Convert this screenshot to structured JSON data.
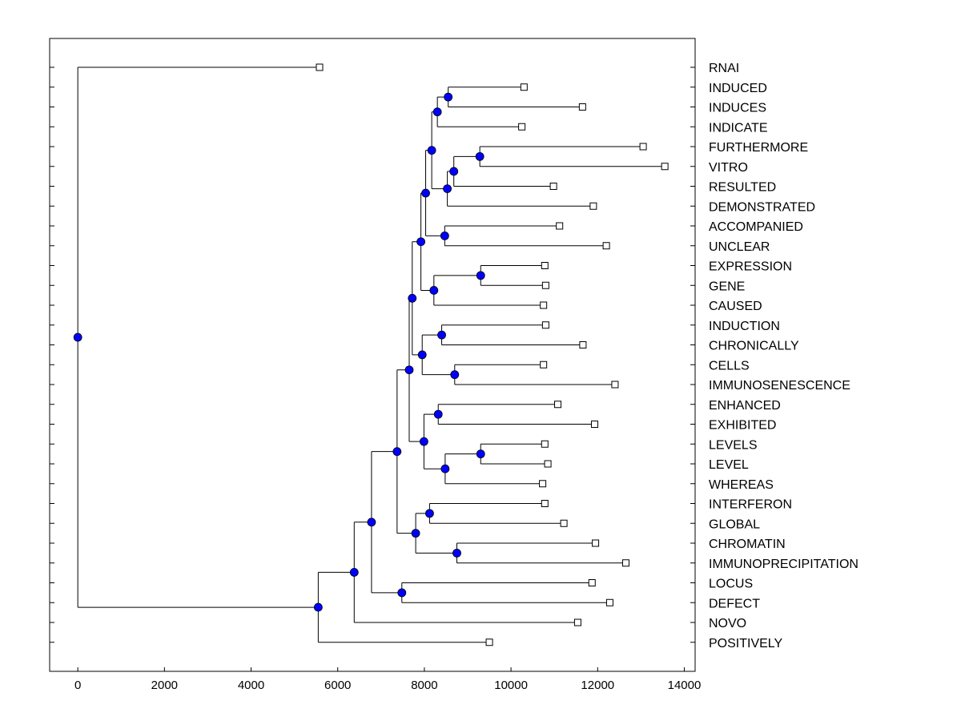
{
  "chart_data": {
    "type": "dendrogram",
    "title": "",
    "xlabel": "",
    "ylabel": "",
    "xlim": [
      -650,
      14250
    ],
    "x_ticks": [
      0,
      2000,
      4000,
      6000,
      8000,
      10000,
      12000,
      14000
    ],
    "x_tick_labels": [
      "0",
      "2000",
      "4000",
      "6000",
      "8000",
      "10000",
      "12000",
      "14000"
    ],
    "grid": false,
    "colors": {
      "node_fill": "#0000ff",
      "line": "#000000",
      "leaf_fill": "#ffffff"
    },
    "leaves": [
      {
        "name": "RNAI",
        "x": 5580
      },
      {
        "name": "INDUCED",
        "x": 10300
      },
      {
        "name": "INDUCES",
        "x": 11650
      },
      {
        "name": "INDICATE",
        "x": 10250
      },
      {
        "name": "FURTHERMORE",
        "x": 13050
      },
      {
        "name": "VITRO",
        "x": 13550
      },
      {
        "name": "RESULTED",
        "x": 10980
      },
      {
        "name": "DEMONSTRATED",
        "x": 11900
      },
      {
        "name": "ACCOMPANIED",
        "x": 11120
      },
      {
        "name": "UNCLEAR",
        "x": 12200
      },
      {
        "name": "EXPRESSION",
        "x": 10780
      },
      {
        "name": "GENE",
        "x": 10800
      },
      {
        "name": "CAUSED",
        "x": 10750
      },
      {
        "name": "INDUCTION",
        "x": 10800
      },
      {
        "name": "CHRONICALLY",
        "x": 11660
      },
      {
        "name": "CELLS",
        "x": 10750
      },
      {
        "name": "IMMUNOSENESCENCE",
        "x": 12400
      },
      {
        "name": "ENHANCED",
        "x": 11080
      },
      {
        "name": "EXHIBITED",
        "x": 11930
      },
      {
        "name": "LEVELS",
        "x": 10780
      },
      {
        "name": "LEVEL",
        "x": 10850
      },
      {
        "name": "WHEREAS",
        "x": 10730
      },
      {
        "name": "INTERFERON",
        "x": 10780
      },
      {
        "name": "GLOBAL",
        "x": 11220
      },
      {
        "name": "CHROMATIN",
        "x": 11950
      },
      {
        "name": "IMMUNOPRECIPITATION",
        "x": 12650
      },
      {
        "name": "LOCUS",
        "x": 11870
      },
      {
        "name": "DEFECT",
        "x": 12280
      },
      {
        "name": "NOVO",
        "x": 11540
      },
      {
        "name": "POSITIVELY",
        "x": 9500
      }
    ],
    "merges": [
      {
        "id": "m1",
        "height": 8550,
        "children": [
          1,
          2
        ]
      },
      {
        "id": "m2",
        "height": 8300,
        "children": [
          "m1",
          3
        ]
      },
      {
        "id": "m3",
        "height": 9280,
        "children": [
          4,
          5
        ]
      },
      {
        "id": "m4",
        "height": 8680,
        "children": [
          "m3",
          6
        ]
      },
      {
        "id": "m5",
        "height": 8530,
        "children": [
          "m4",
          7
        ]
      },
      {
        "id": "m6",
        "height": 8170,
        "children": [
          "m2",
          "m5"
        ]
      },
      {
        "id": "m7",
        "height": 8470,
        "children": [
          8,
          9
        ]
      },
      {
        "id": "m8",
        "height": 8030,
        "children": [
          "m6",
          "m7"
        ]
      },
      {
        "id": "m9",
        "height": 9300,
        "children": [
          10,
          11
        ]
      },
      {
        "id": "m10",
        "height": 8220,
        "children": [
          "m9",
          12
        ]
      },
      {
        "id": "m11",
        "height": 7920,
        "children": [
          "m8",
          "m10"
        ]
      },
      {
        "id": "m12",
        "height": 8400,
        "children": [
          13,
          14
        ]
      },
      {
        "id": "m13",
        "height": 8700,
        "children": [
          15,
          16
        ]
      },
      {
        "id": "m14",
        "height": 7950,
        "children": [
          "m12",
          "m13"
        ]
      },
      {
        "id": "m15",
        "height": 7720,
        "children": [
          "m11",
          "m14"
        ]
      },
      {
        "id": "m16",
        "height": 8320,
        "children": [
          17,
          18
        ]
      },
      {
        "id": "m17",
        "height": 9300,
        "children": [
          19,
          20
        ]
      },
      {
        "id": "m18",
        "height": 8480,
        "children": [
          "m17",
          21
        ]
      },
      {
        "id": "m19",
        "height": 7990,
        "children": [
          "m16",
          "m18"
        ]
      },
      {
        "id": "m20",
        "height": 7650,
        "children": [
          "m15",
          "m19"
        ]
      },
      {
        "id": "m21",
        "height": 8120,
        "children": [
          22,
          23
        ]
      },
      {
        "id": "m22",
        "height": 8750,
        "children": [
          24,
          25
        ]
      },
      {
        "id": "m23",
        "height": 7800,
        "children": [
          "m21",
          "m22"
        ]
      },
      {
        "id": "m24",
        "height": 7370,
        "children": [
          "m20",
          "m23"
        ]
      },
      {
        "id": "m25",
        "height": 7480,
        "children": [
          26,
          27
        ]
      },
      {
        "id": "m26",
        "height": 6780,
        "children": [
          "m24",
          "m25"
        ]
      },
      {
        "id": "m27",
        "height": 6380,
        "children": [
          "m26",
          28
        ]
      },
      {
        "id": "m28",
        "height": 5550,
        "children": [
          "m27",
          29
        ]
      },
      {
        "id": "m29",
        "height": 0,
        "children": [
          0,
          "m28"
        ]
      }
    ]
  }
}
